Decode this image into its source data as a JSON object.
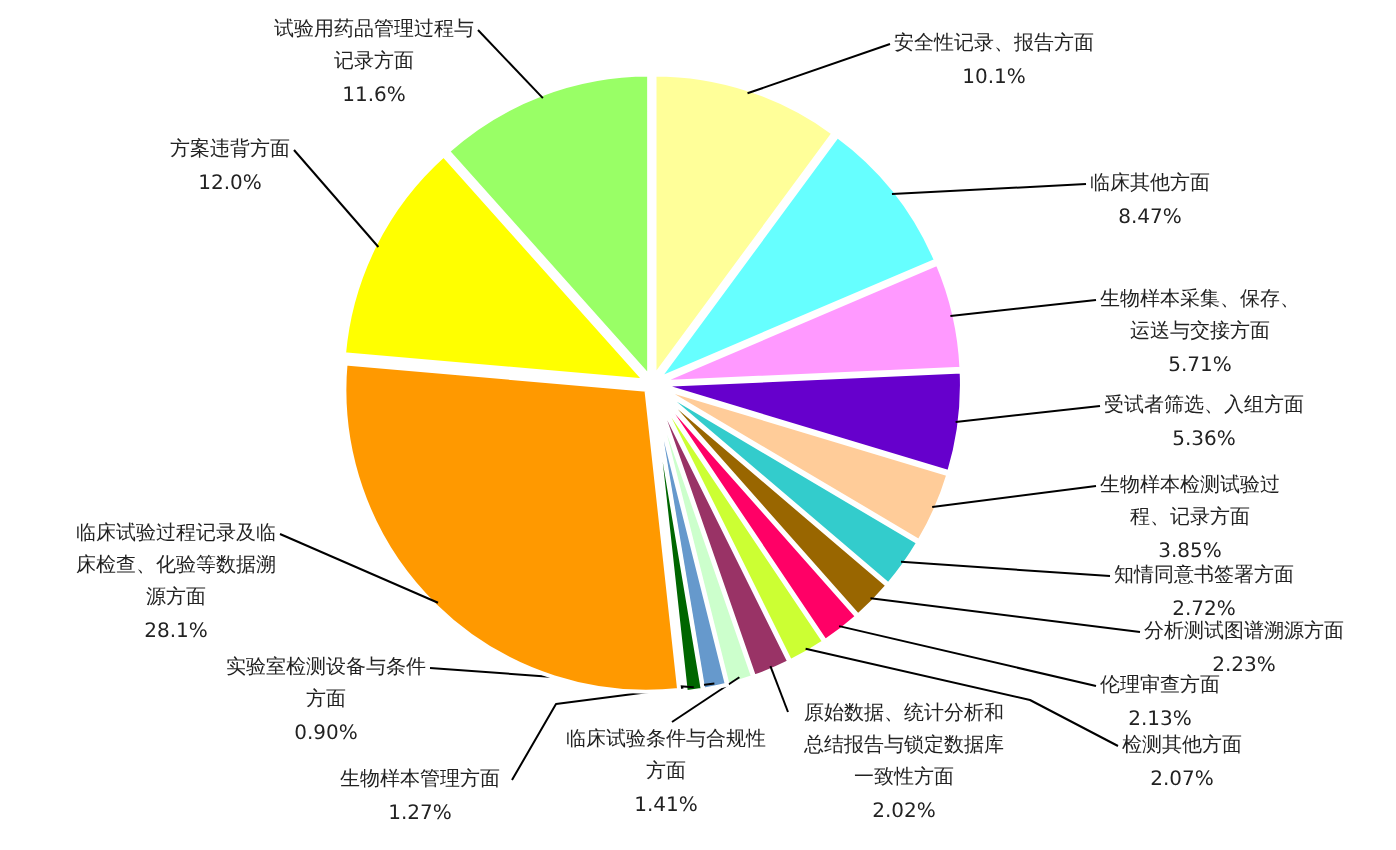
{
  "chart_data": {
    "type": "pie",
    "categories": [
      "安全性记录、报告方面",
      "临床其他方面",
      "生物样本采集、保存、运送与交接方面",
      "受试者筛选、入组方面",
      "生物样本检测试验过程、记录方面",
      "知情同意书签署方面",
      "分析测试图谱溯源方面",
      "伦理审查方面",
      "检测其他方面",
      "原始数据、统计分析和总结报告与锁定数据库一致性方面",
      "临床试验条件与合规性方面",
      "生物样本管理方面",
      "实验室检测设备与条件方面",
      "临床试验过程记录及临床检查、化验等数据溯源方面",
      "方案违背方面",
      "试验用药品管理过程与记录方面"
    ],
    "values": [
      10.1,
      8.47,
      5.71,
      5.36,
      3.85,
      2.72,
      2.23,
      2.13,
      2.07,
      2.02,
      1.41,
      1.27,
      0.9,
      28.1,
      12.0,
      11.6
    ],
    "value_labels": [
      "10.1%",
      "8.47%",
      "5.71%",
      "5.36%",
      "3.85%",
      "2.72%",
      "2.23%",
      "2.13%",
      "2.07%",
      "2.02%",
      "1.41%",
      "1.27%",
      "0.90%",
      "28.1%",
      "12.0%",
      "11.6%"
    ],
    "colors": [
      "#ffff99",
      "#66ffff",
      "#ff99ff",
      "#6600cc",
      "#ffcc99",
      "#33cccc",
      "#996600",
      "#ff0066",
      "#ccff33",
      "#993366",
      "#ccffcc",
      "#6699cc",
      "#006600",
      "#ff9900",
      "#ffff00",
      "#99ff66"
    ]
  }
}
